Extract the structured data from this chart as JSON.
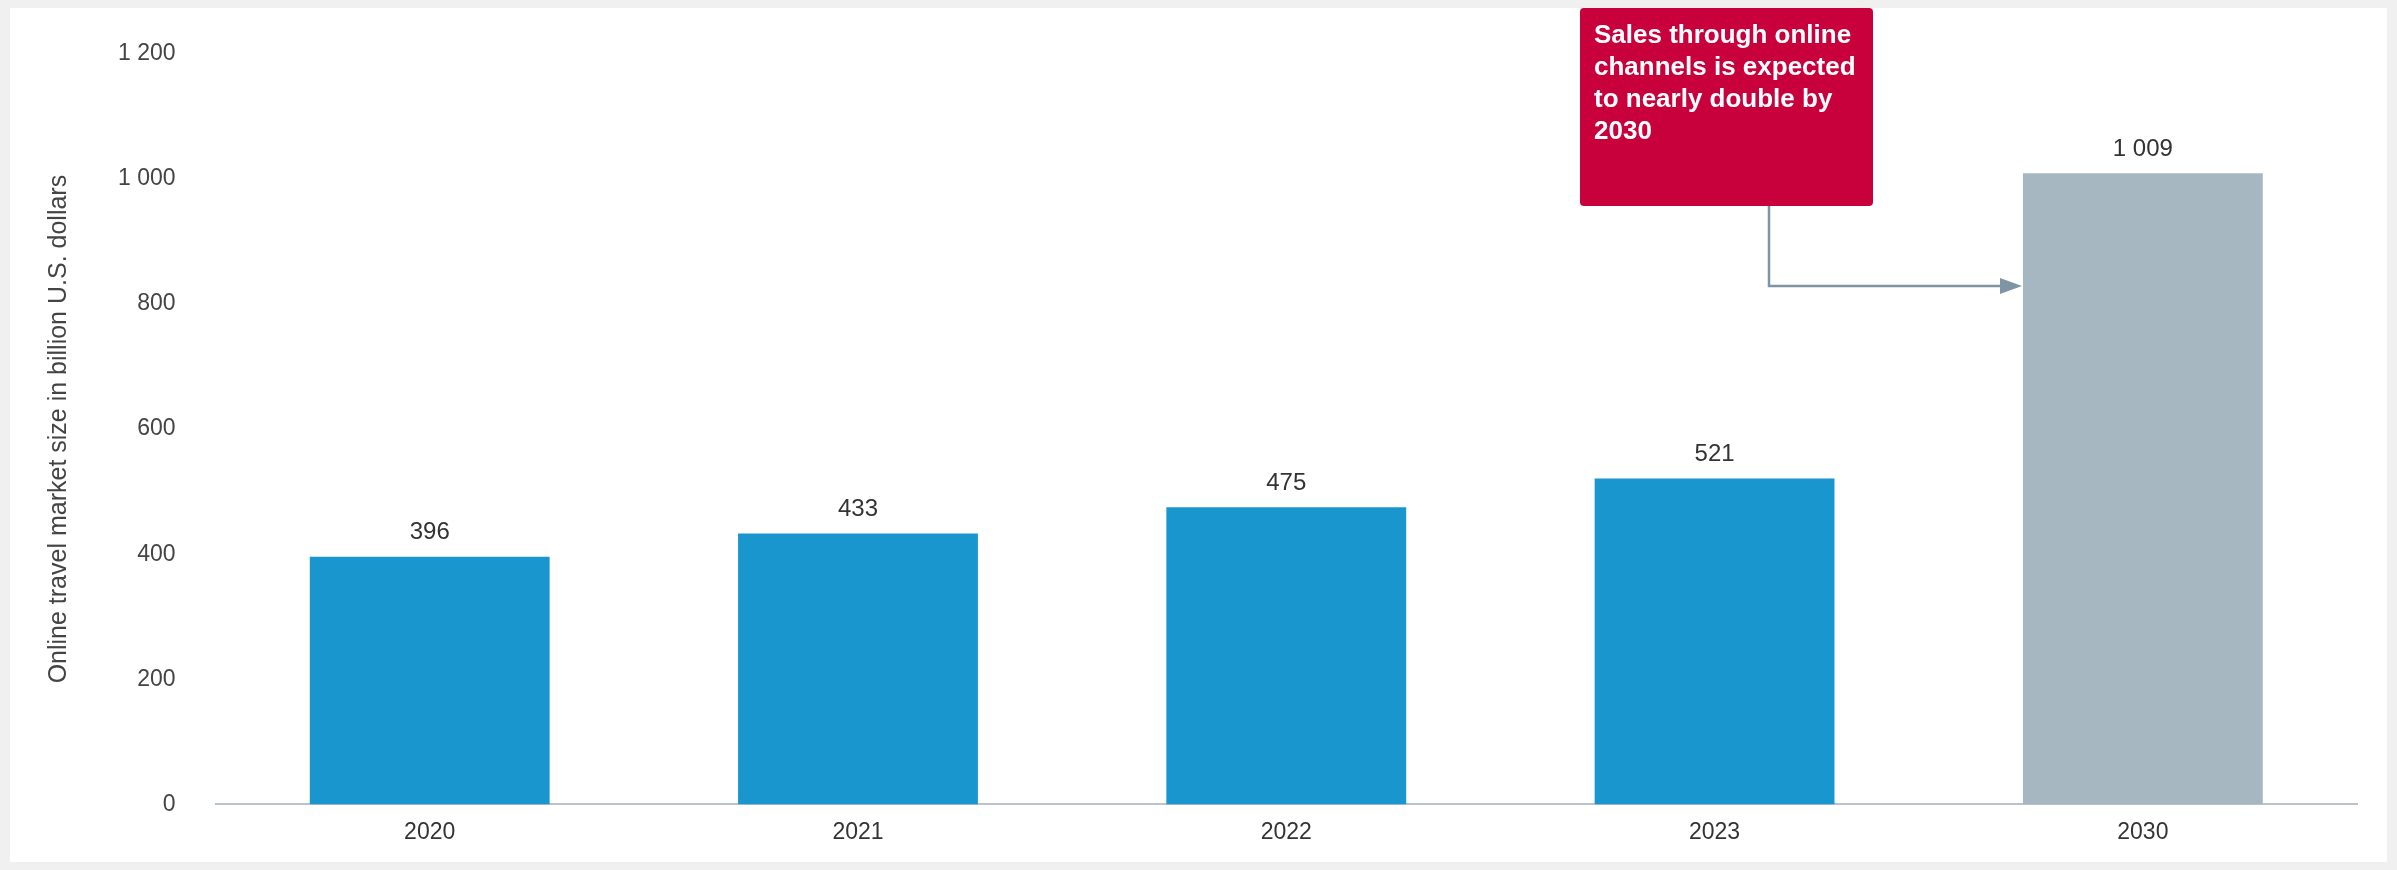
{
  "chart_data": {
    "type": "bar",
    "ylabel": "Online travel market size in billion U.S. dollars",
    "categories": [
      "2020",
      "2021",
      "2022",
      "2023",
      "2030"
    ],
    "values": [
      396,
      433,
      475,
      521,
      1009
    ],
    "colors": [
      "#1a96cf",
      "#1a96cf",
      "#1a96cf",
      "#1a96cf",
      "#a7b7c1"
    ],
    "value_labels": [
      "396",
      "433",
      "475",
      "521",
      "1 009"
    ],
    "ylim": [
      0,
      1200
    ],
    "yticks": [
      0,
      200,
      400,
      600,
      800,
      {
        "value": 1000,
        "label": "1 000"
      },
      {
        "value": 1200,
        "label": "1 200"
      }
    ],
    "grid": false,
    "legend": false,
    "annotations": [
      "Sales through online channels is expected to nearly double by 2030"
    ]
  }
}
